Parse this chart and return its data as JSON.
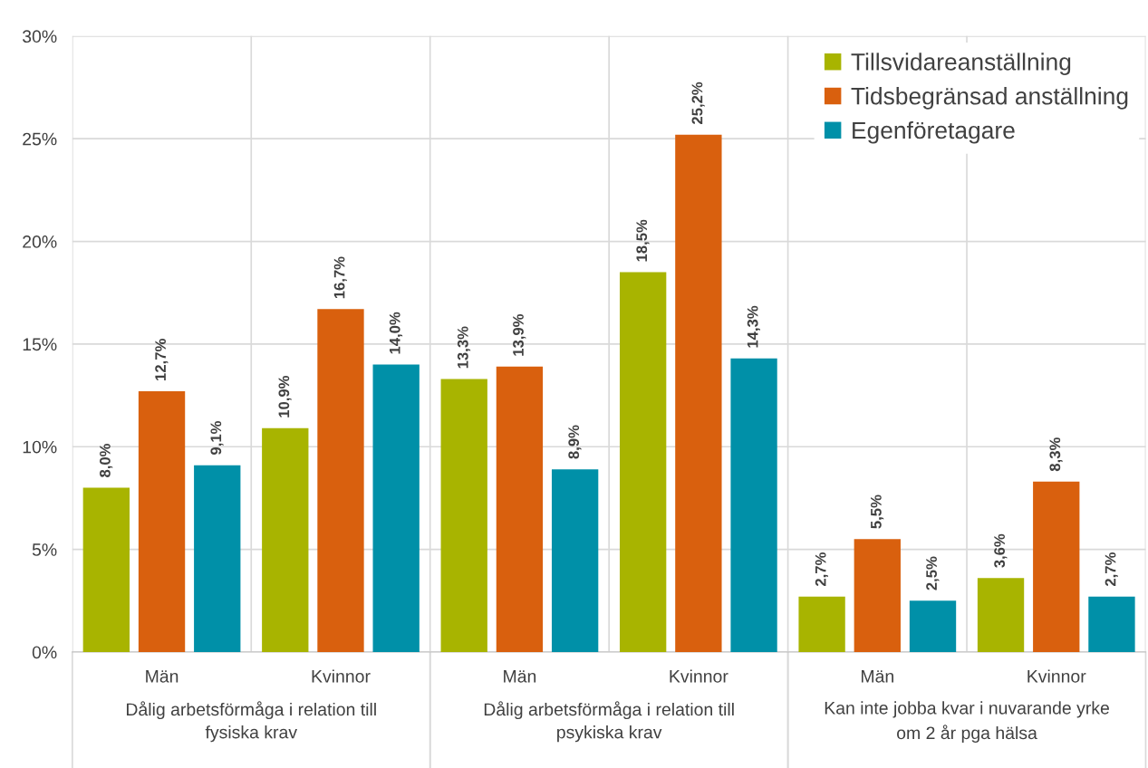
{
  "chart_data": {
    "type": "bar",
    "categories": [
      "Män",
      "Kvinnor",
      "Män",
      "Kvinnor",
      "Män",
      "Kvinnor"
    ],
    "annotations": [
      "Dålig arbetsförmåga i relation till\nfysiska krav",
      "Dålig arbetsförmåga i relation till\npsykiska krav",
      "Kan inte jobba kvar i nuvarande yrke\nom 2 år pga hälsa"
    ],
    "series": [
      {
        "name": "Tillsvidareanställning",
        "color": "#a8b400",
        "values": [
          8.0,
          10.9,
          13.3,
          18.5,
          2.7,
          3.6
        ],
        "value_labels": [
          "8,0%",
          "10,9%",
          "13,3%",
          "18,5%",
          "2,7%",
          "3,6%"
        ]
      },
      {
        "name": "Tidsbegränsad anställning",
        "color": "#d9600e",
        "values": [
          12.7,
          16.7,
          13.9,
          25.2,
          5.5,
          8.3
        ],
        "value_labels": [
          "12,7%",
          "16,7%",
          "13,9%",
          "25,2%",
          "5,5%",
          "8,3%"
        ]
      },
      {
        "name": "Egenföretagare",
        "color": "#0090a8",
        "values": [
          9.1,
          14.0,
          8.9,
          14.3,
          2.5,
          2.7
        ],
        "value_labels": [
          "9,1%",
          "14,0%",
          "8,9%",
          "14,3%",
          "2,5%",
          "2,7%"
        ]
      }
    ],
    "ylim": [
      0,
      30
    ],
    "yticks": [
      {
        "value": 0,
        "label": "0%"
      },
      {
        "value": 5,
        "label": "5%"
      },
      {
        "value": 10,
        "label": "10%"
      },
      {
        "value": 15,
        "label": "15%"
      },
      {
        "value": 20,
        "label": "20%"
      },
      {
        "value": 25,
        "label": "25%"
      },
      {
        "value": 30,
        "label": "30%"
      }
    ],
    "grid": true,
    "legend": "top right"
  }
}
